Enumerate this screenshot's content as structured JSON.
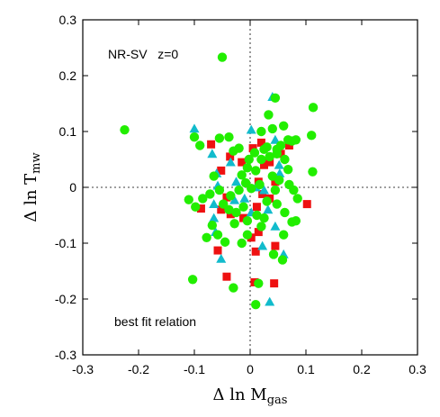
{
  "chart_data": {
    "type": "scatter",
    "title": "",
    "xlabel": {
      "main": "Δ ln M",
      "sub": "gas"
    },
    "ylabel": {
      "main": "Δ ln T",
      "sub": "mw"
    },
    "xlim": [
      -0.3,
      0.3
    ],
    "ylim": [
      -0.3,
      0.3
    ],
    "xticks": [
      "-0.3",
      "-0.2",
      "-0.1",
      "0",
      "0.1",
      "0.2",
      "0.3"
    ],
    "yticks": [
      "-0.3",
      "-0.2",
      "-0.1",
      "0",
      "0.1",
      "0.2",
      "0.3"
    ],
    "annotations": {
      "top_left": "NR-SV   z=0",
      "bottom_left": "best fit relation"
    },
    "reference_lines": {
      "x": 0,
      "y": 0,
      "style": "dotted"
    },
    "series": [
      {
        "marker": "square",
        "color": "#ee1111",
        "points": [
          [
            -0.07,
            0.077
          ],
          [
            -0.036,
            0.055
          ],
          [
            -0.052,
            0.03
          ],
          [
            -0.015,
            0.045
          ],
          [
            0.005,
            0.07
          ],
          [
            0.02,
            0.08
          ],
          [
            0.025,
            0.04
          ],
          [
            0.015,
            0.01
          ],
          [
            0.035,
            0.045
          ],
          [
            0.055,
            0.06
          ],
          [
            0.07,
            0.075
          ],
          [
            0.045,
            0.01
          ],
          [
            0.022,
            -0.012
          ],
          [
            0.035,
            -0.02
          ],
          [
            0.012,
            -0.035
          ],
          [
            -0.088,
            -0.038
          ],
          [
            -0.042,
            -0.018
          ],
          [
            -0.052,
            -0.04
          ],
          [
            -0.035,
            -0.048
          ],
          [
            -0.012,
            -0.055
          ],
          [
            0.002,
            -0.09
          ],
          [
            0.015,
            -0.08
          ],
          [
            -0.058,
            -0.113
          ],
          [
            0.01,
            -0.115
          ],
          [
            0.045,
            -0.105
          ],
          [
            -0.042,
            -0.16
          ],
          [
            0.008,
            -0.17
          ],
          [
            0.043,
            -0.172
          ],
          [
            0.102,
            -0.03
          ]
        ]
      },
      {
        "marker": "triangle",
        "color": "#11bbcc",
        "points": [
          [
            -0.1,
            0.105
          ],
          [
            0.04,
            0.162
          ],
          [
            0.002,
            0.103
          ],
          [
            -0.035,
            0.045
          ],
          [
            0.045,
            0.085
          ],
          [
            0.052,
            0.04
          ],
          [
            -0.06,
            0.025
          ],
          [
            -0.058,
            0.003
          ],
          [
            0.01,
            0.0
          ],
          [
            0.025,
            -0.005
          ],
          [
            -0.01,
            -0.02
          ],
          [
            0.002,
            -0.045
          ],
          [
            0.032,
            -0.04
          ],
          [
            -0.052,
            -0.128
          ],
          [
            0.022,
            -0.105
          ],
          [
            -0.062,
            -0.08
          ],
          [
            -0.065,
            -0.055
          ],
          [
            0.045,
            -0.07
          ],
          [
            -0.028,
            -0.023
          ],
          [
            -0.068,
            0.06
          ],
          [
            0.053,
            0.025
          ],
          [
            -0.065,
            -0.03
          ],
          [
            -0.025,
            0.01
          ],
          [
            0.06,
            -0.12
          ],
          [
            0.035,
            -0.205
          ]
        ]
      },
      {
        "marker": "circle",
        "color": "#22ee00",
        "points": [
          [
            -0.225,
            0.103
          ],
          [
            -0.05,
            0.233
          ],
          [
            -0.1,
            0.09
          ],
          [
            -0.09,
            0.075
          ],
          [
            -0.055,
            0.088
          ],
          [
            0.045,
            0.16
          ],
          [
            0.033,
            0.13
          ],
          [
            0.075,
            0.083
          ],
          [
            0.113,
            0.143
          ],
          [
            0.11,
            0.093
          ],
          [
            0.082,
            0.085
          ],
          [
            0.06,
            0.11
          ],
          [
            0.03,
            0.072
          ],
          [
            0.04,
            0.105
          ],
          [
            0.008,
            0.062
          ],
          [
            0.01,
            0.03
          ],
          [
            0.02,
            0.05
          ],
          [
            0.035,
            0.055
          ],
          [
            0.048,
            0.06
          ],
          [
            0.055,
            0.075
          ],
          [
            -0.038,
            0.09
          ],
          [
            -0.03,
            0.065
          ],
          [
            -0.02,
            0.07
          ],
          [
            -0.005,
            0.035
          ],
          [
            -0.015,
            0.022
          ],
          [
            0.025,
            0.068
          ],
          [
            0.062,
            0.05
          ],
          [
            0.068,
            0.032
          ],
          [
            0.07,
            0.005
          ],
          [
            0.112,
            0.028
          ],
          [
            0.052,
            0.013
          ],
          [
            0.045,
            -0.005
          ],
          [
            0.002,
            -0.002
          ],
          [
            -0.008,
            0.008
          ],
          [
            -0.02,
            -0.005
          ],
          [
            -0.035,
            -0.015
          ],
          [
            -0.055,
            -0.005
          ],
          [
            -0.072,
            -0.012
          ],
          [
            -0.085,
            -0.02
          ],
          [
            -0.11,
            -0.022
          ],
          [
            -0.048,
            -0.03
          ],
          [
            -0.038,
            -0.04
          ],
          [
            -0.025,
            -0.045
          ],
          [
            -0.012,
            -0.035
          ],
          [
            -0.005,
            -0.06
          ],
          [
            0.012,
            -0.05
          ],
          [
            0.025,
            -0.055
          ],
          [
            0.03,
            -0.025
          ],
          [
            0.048,
            -0.03
          ],
          [
            0.062,
            -0.045
          ],
          [
            0.075,
            -0.062
          ],
          [
            0.082,
            -0.06
          ],
          [
            0.06,
            -0.085
          ],
          [
            0.042,
            -0.12
          ],
          [
            -0.068,
            -0.068
          ],
          [
            -0.078,
            -0.09
          ],
          [
            -0.058,
            -0.085
          ],
          [
            -0.045,
            -0.098
          ],
          [
            -0.015,
            -0.1
          ],
          [
            -0.005,
            -0.085
          ],
          [
            -0.03,
            -0.18
          ],
          [
            0.015,
            -0.172
          ],
          [
            0.01,
            -0.21
          ],
          [
            -0.103,
            -0.165
          ],
          [
            -0.098,
            -0.035
          ],
          [
            0.078,
            -0.005
          ],
          [
            0.085,
            -0.02
          ],
          [
            0.04,
            0.02
          ],
          [
            0.017,
            0.005
          ],
          [
            -0.002,
            0.05
          ],
          [
            0.068,
            0.085
          ],
          [
            0.02,
            0.1
          ],
          [
            0.058,
            -0.13
          ],
          [
            0.048,
            0.068
          ],
          [
            -0.065,
            0.02
          ],
          [
            0.02,
            -0.07
          ],
          [
            -0.028,
            -0.065
          ]
        ]
      }
    ]
  }
}
